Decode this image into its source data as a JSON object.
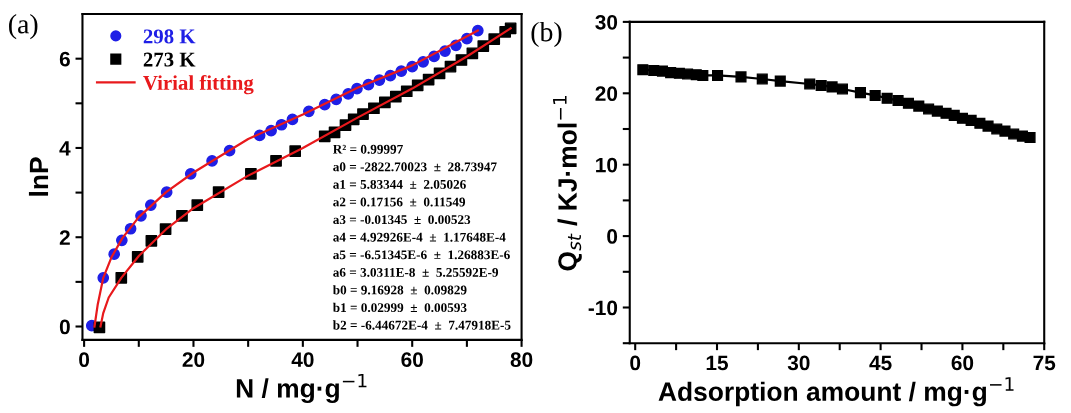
{
  "chart_data": [
    {
      "type": "scatter",
      "title": "(a)",
      "xlabel": "N / mg·g$^{−1}$",
      "ylabel": "lnP",
      "xlim": [
        -0.3,
        80
      ],
      "ylim": [
        -0.3,
        7
      ],
      "xticks": [
        0,
        {
          "value": 10,
          "label": null
        },
        20,
        {
          "value": 30,
          "label": null
        },
        40,
        {
          "value": 50,
          "label": null
        },
        60,
        {
          "value": 70,
          "label": null
        },
        80
      ],
      "yticks": [
        0,
        {
          "value": 1,
          "label": null
        },
        2,
        {
          "value": 3,
          "label": null
        },
        4,
        {
          "value": 5,
          "label": null
        },
        6
      ],
      "legend": "top left",
      "grid": false,
      "series": [
        {
          "name": "298 K",
          "type": "scatter",
          "marker": "circle",
          "color": "#1f1fe6",
          "x": [
            1.4,
            3.5,
            5.5,
            6.9,
            8.5,
            10.4,
            12.2,
            15.1,
            19.5,
            23.4,
            26.6,
            32.1,
            34.2,
            36.1,
            38.1,
            41.1,
            44,
            46.1,
            48.3,
            49.9,
            52,
            54,
            56,
            58,
            60,
            62,
            64,
            66,
            68,
            70,
            72
          ],
          "values": [
            0.02,
            1.09,
            1.62,
            1.93,
            2.19,
            2.48,
            2.72,
            3.01,
            3.42,
            3.71,
            3.94,
            4.28,
            4.39,
            4.52,
            4.64,
            4.82,
            4.97,
            5.09,
            5.21,
            5.33,
            5.42,
            5.52,
            5.62,
            5.72,
            5.82,
            5.93,
            6.05,
            6.17,
            6.3,
            6.45,
            6.63
          ]
        },
        {
          "name": "273 K",
          "type": "scatter",
          "marker": "square",
          "color": "#000000",
          "x": [
            2.8,
            6.8,
            9.8,
            12.3,
            14.9,
            17.9,
            20.7,
            24.6,
            30.5,
            35.1,
            38.6,
            44,
            45.8,
            47.8,
            49.3,
            51,
            53,
            55,
            57,
            59,
            61,
            63,
            65,
            67,
            69,
            71,
            73,
            75,
            77,
            78
          ],
          "values": [
            -0.02,
            1.09,
            1.56,
            1.92,
            2.18,
            2.48,
            2.72,
            3.01,
            3.42,
            3.71,
            3.93,
            4.26,
            4.35,
            4.51,
            4.64,
            4.76,
            4.89,
            5.02,
            5.15,
            5.27,
            5.4,
            5.53,
            5.67,
            5.82,
            5.97,
            6.12,
            6.28,
            6.44,
            6.6,
            6.68
          ]
        },
        {
          "name": "Virial fitting",
          "type": "line",
          "marker": "none",
          "line_style": "solid",
          "color": "#e8191c",
          "x": [
            1.9,
            2.5,
            3.5,
            5,
            7,
            10,
            15,
            20,
            30,
            40,
            50,
            60,
            72
          ],
          "values": [
            0,
            0.5,
            1.09,
            1.55,
            1.98,
            2.45,
            3.01,
            3.45,
            4.2,
            4.75,
            5.35,
            5.85,
            6.63
          ]
        },
        {
          "type": "line",
          "marker": "none",
          "line_style": "solid",
          "color": "#e8191c",
          "x": [
            3.0,
            3.5,
            4.5,
            6.8,
            10,
            15,
            20,
            30,
            40,
            50,
            60,
            70,
            78
          ],
          "values": [
            0,
            0.3,
            0.65,
            1.09,
            1.58,
            2.18,
            2.65,
            3.38,
            4.0,
            4.68,
            5.33,
            6.05,
            6.68
          ]
        }
      ],
      "annotations": [
        "R² = 0.99997",
        "a0 = -2822.70023  ±  28.73947",
        "a1 = 5.83344  ±  2.05026",
        "a2 = 0.17156  ±  0.11549",
        "a3 = -0.01345  ±  0.00523",
        "a4 = 4.92926E-4  ±  1.17648E-4",
        "a5 = -6.51345E-6  ±  1.26883E-6",
        "a6 = 3.0311E-8  ±  5.25592E-9",
        "b0 = 9.16928  ±  0.09829",
        "b1 = 0.02999  ±  0.00593",
        "b2 = -6.44672E-4  ±  7.47918E-5"
      ]
    },
    {
      "type": "line",
      "title": "(b)",
      "xlabel": "Adsorption amount / mg·g$^{−1}$",
      "ylabel": "Q$_{st}$ / KJ·mol$^{−1}$",
      "xlim": [
        -1,
        75
      ],
      "ylim": [
        -15,
        30
      ],
      "xticks": [
        0,
        {
          "value": 7.5,
          "label": null
        },
        15,
        {
          "value": 22.5,
          "label": null
        },
        30,
        {
          "value": 37.5,
          "label": null
        },
        45,
        {
          "value": 52.5,
          "label": null
        },
        60,
        {
          "value": 67.5,
          "label": null
        },
        75
      ],
      "yticks": [
        {
          "value": -15,
          "label": null
        },
        -10,
        {
          "value": -5,
          "label": null
        },
        0,
        {
          "value": 5,
          "label": null
        },
        10,
        {
          "value": 15,
          "label": null
        },
        20,
        {
          "value": 25,
          "label": null
        },
        30
      ],
      "grid": false,
      "marker": "square",
      "line_style": "solid",
      "series": [
        {
          "color": "#000000",
          "x": [
            1.4,
            3.4,
            5.0,
            6.5,
            8.1,
            9.6,
            11.2,
            12.4,
            15.1,
            19.4,
            23.3,
            26.6,
            32.0,
            34.1,
            36.1,
            38.0,
            41.3,
            44.0,
            46.2,
            48.2,
            50.1,
            52.0,
            53.8,
            55.4,
            57.0,
            58.5,
            60.0,
            61.6,
            63.2,
            64.7,
            66.3,
            67.8,
            69.4,
            71.0,
            72.4
          ],
          "values": [
            23.3,
            23.2,
            23.1,
            22.9,
            22.8,
            22.7,
            22.6,
            22.5,
            22.5,
            22.3,
            22.0,
            21.7,
            21.3,
            21.1,
            20.9,
            20.6,
            20.1,
            19.7,
            19.3,
            19.0,
            18.6,
            18.2,
            17.8,
            17.5,
            17.2,
            16.9,
            16.5,
            16.2,
            15.8,
            15.4,
            15.0,
            14.7,
            14.3,
            14.0,
            13.8
          ]
        }
      ]
    }
  ]
}
